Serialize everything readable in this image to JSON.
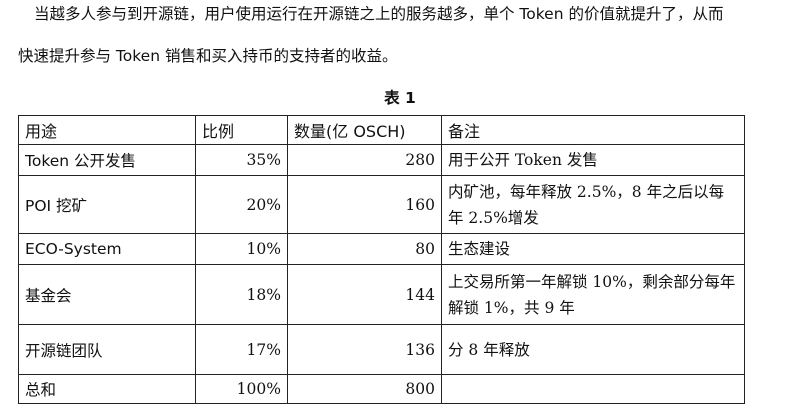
{
  "paragraph": {
    "line1": "当越多人参与到开源链，用户使用运行在开源链之上的服务越多，单个 Token 的价值就提升了，从而",
    "line2": "快速提升参与 Token 销售和买入持币的支持者的收益。"
  },
  "table_caption": "表 1",
  "table": {
    "headers": [
      "用途",
      "比例",
      "数量(亿 OSCH)",
      "备注"
    ],
    "rows": [
      {
        "use": "Token 公开发售",
        "ratio": "35%",
        "amount": "280",
        "note": "用于公开 Token 发售"
      },
      {
        "use": "POI 挖矿",
        "ratio": "20%",
        "amount": "160",
        "note": "内矿池，每年释放 2.5%，8 年之后以每年 2.5%增发"
      },
      {
        "use": "ECO-System",
        "ratio": "10%",
        "amount": "80",
        "note": "生态建设"
      },
      {
        "use": "基金会",
        "ratio": "18%",
        "amount": "144",
        "note": "上交易所第一年解锁 10%，剩余部分每年解锁 1%，共 9 年"
      },
      {
        "use": "开源链团队",
        "ratio": "17%",
        "amount": "136",
        "note": "分 8 年释放"
      },
      {
        "use": "总和",
        "ratio": "100%",
        "amount": "800",
        "note": ""
      }
    ]
  }
}
